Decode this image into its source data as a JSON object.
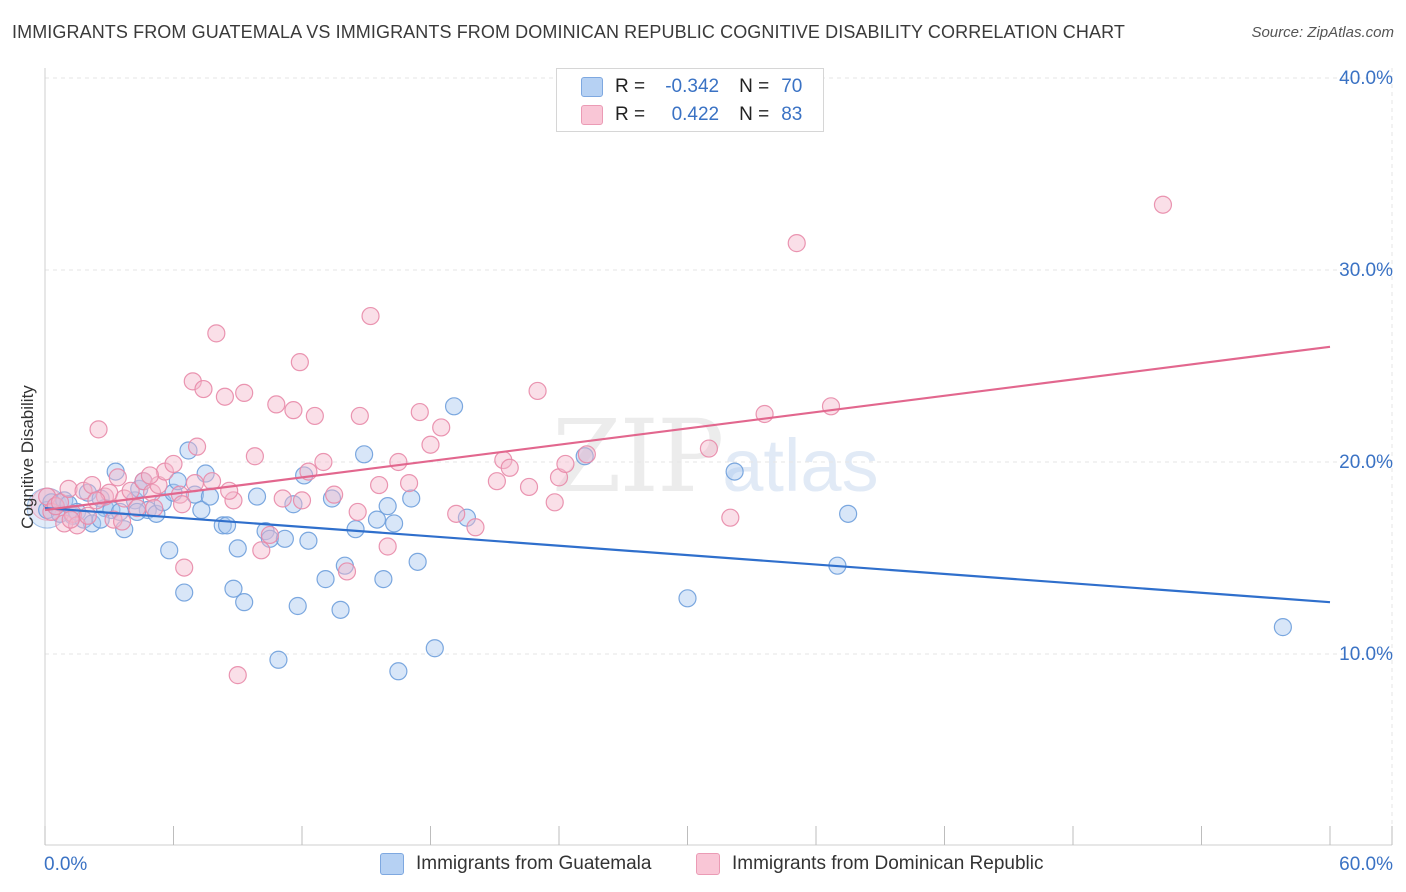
{
  "title": "IMMIGRANTS FROM GUATEMALA VS IMMIGRANTS FROM DOMINICAN REPUBLIC COGNITIVE DISABILITY CORRELATION CHART",
  "source": "Source: ZipAtlas.com",
  "watermark": {
    "part1": "ZIP",
    "part2": "atlas"
  },
  "legend": {
    "rows": [
      {
        "r_label": "R =",
        "r_value": "-0.342",
        "n_label": "N =",
        "n_value": "70"
      },
      {
        "r_label": "R =",
        "r_value": "0.422",
        "n_label": "N =",
        "n_value": "83"
      }
    ]
  },
  "bottom_legend": [
    "Immigrants from Guatemala",
    "Immigrants from Dominican Republic"
  ],
  "colors": {
    "blue_fill": "#a8c8f0",
    "blue_stroke": "#6e9fdc",
    "blue_line": "#2f6fcc",
    "pink_fill": "#f5b8cc",
    "pink_stroke": "#e88aa8",
    "pink_line": "#e2678e",
    "tick_label": "#3a72c4",
    "grid": "#e6e6e6"
  },
  "chart_data": {
    "type": "scatter",
    "title": "IMMIGRANTS FROM GUATEMALA VS IMMIGRANTS FROM DOMINICAN REPUBLIC COGNITIVE DISABILITY CORRELATION CHART",
    "xlabel": "",
    "ylabel": "Cognitive Disability",
    "xlim": [
      0,
      60
    ],
    "ylim": [
      0,
      42
    ],
    "x_tick_labels": [
      "0.0%",
      "60.0%"
    ],
    "y_ticks": [
      10,
      20,
      30,
      40
    ],
    "y_tick_labels": [
      "10.0%",
      "20.0%",
      "30.0%",
      "40.0%"
    ],
    "grid": true,
    "legend_position": "top-center",
    "series": [
      {
        "name": "Immigrants from Guatemala",
        "r": -0.342,
        "n": 70,
        "trend": {
          "x": [
            0,
            60
          ],
          "y": [
            17.6,
            12.7
          ]
        },
        "points": [
          [
            0.1,
            17.5
          ],
          [
            0.3,
            17.9
          ],
          [
            0.5,
            17.7
          ],
          [
            0.7,
            17.3
          ],
          [
            0.9,
            18.0
          ],
          [
            1.1,
            17.8
          ],
          [
            1.3,
            17.2
          ],
          [
            1.5,
            17.4
          ],
          [
            1.8,
            17.0
          ],
          [
            2.0,
            18.4
          ],
          [
            2.2,
            16.8
          ],
          [
            2.6,
            18.1
          ],
          [
            2.8,
            17.6
          ],
          [
            3.1,
            17.5
          ],
          [
            3.3,
            19.5
          ],
          [
            3.5,
            17.4
          ],
          [
            3.7,
            16.5
          ],
          [
            4.2,
            18.0
          ],
          [
            4.4,
            18.6
          ],
          [
            4.6,
            19.0
          ],
          [
            4.8,
            17.5
          ],
          [
            5.2,
            17.3
          ],
          [
            5.5,
            17.9
          ],
          [
            5.8,
            15.4
          ],
          [
            6.0,
            18.4
          ],
          [
            6.2,
            19.0
          ],
          [
            6.5,
            13.2
          ],
          [
            6.7,
            20.6
          ],
          [
            7.0,
            18.3
          ],
          [
            7.3,
            17.5
          ],
          [
            7.5,
            19.4
          ],
          [
            7.7,
            18.2
          ],
          [
            8.3,
            16.7
          ],
          [
            8.5,
            16.7
          ],
          [
            8.8,
            13.4
          ],
          [
            9.0,
            15.5
          ],
          [
            9.3,
            12.7
          ],
          [
            9.9,
            18.2
          ],
          [
            10.3,
            16.4
          ],
          [
            10.5,
            16.0
          ],
          [
            10.9,
            9.7
          ],
          [
            11.2,
            16.0
          ],
          [
            11.6,
            17.8
          ],
          [
            11.8,
            12.5
          ],
          [
            12.1,
            19.3
          ],
          [
            12.3,
            15.9
          ],
          [
            13.1,
            13.9
          ],
          [
            13.4,
            18.1
          ],
          [
            13.8,
            12.3
          ],
          [
            14.0,
            14.6
          ],
          [
            14.5,
            16.5
          ],
          [
            14.9,
            20.4
          ],
          [
            15.5,
            17.0
          ],
          [
            15.8,
            13.9
          ],
          [
            16.0,
            17.7
          ],
          [
            16.3,
            16.8
          ],
          [
            16.5,
            9.1
          ],
          [
            17.1,
            18.1
          ],
          [
            17.4,
            14.8
          ],
          [
            18.2,
            10.3
          ],
          [
            19.1,
            22.9
          ],
          [
            19.7,
            17.1
          ],
          [
            25.2,
            20.3
          ],
          [
            30.0,
            12.9
          ],
          [
            32.2,
            19.5
          ],
          [
            37.0,
            14.6
          ],
          [
            37.5,
            17.3
          ],
          [
            57.8,
            11.4
          ],
          [
            4.3,
            17.4
          ],
          [
            2.6,
            17.0
          ]
        ]
      },
      {
        "name": "Immigrants from Dominican Republic",
        "r": 0.422,
        "n": 83,
        "trend": {
          "x": [
            0,
            60
          ],
          "y": [
            17.5,
            26.0
          ]
        },
        "points": [
          [
            0.1,
            18.2
          ],
          [
            0.3,
            17.4
          ],
          [
            0.5,
            17.7
          ],
          [
            0.7,
            17.9
          ],
          [
            0.9,
            16.8
          ],
          [
            1.1,
            18.6
          ],
          [
            1.3,
            17.3
          ],
          [
            1.5,
            16.7
          ],
          [
            1.8,
            18.5
          ],
          [
            2.0,
            17.2
          ],
          [
            2.2,
            18.8
          ],
          [
            2.5,
            21.7
          ],
          [
            2.8,
            18.2
          ],
          [
            3.0,
            18.4
          ],
          [
            3.2,
            17.0
          ],
          [
            3.4,
            19.2
          ],
          [
            3.7,
            18.1
          ],
          [
            4.0,
            18.5
          ],
          [
            4.3,
            17.6
          ],
          [
            4.6,
            19.0
          ],
          [
            5.0,
            18.4
          ],
          [
            5.3,
            18.8
          ],
          [
            5.6,
            19.5
          ],
          [
            6.0,
            19.9
          ],
          [
            6.3,
            18.3
          ],
          [
            6.5,
            14.5
          ],
          [
            6.9,
            24.2
          ],
          [
            7.1,
            20.8
          ],
          [
            7.4,
            23.8
          ],
          [
            7.8,
            19.0
          ],
          [
            8.0,
            26.7
          ],
          [
            8.4,
            23.4
          ],
          [
            8.8,
            18.0
          ],
          [
            9.0,
            8.9
          ],
          [
            9.3,
            23.6
          ],
          [
            9.8,
            20.3
          ],
          [
            10.1,
            15.4
          ],
          [
            10.5,
            16.2
          ],
          [
            10.8,
            23.0
          ],
          [
            11.1,
            18.1
          ],
          [
            11.6,
            22.7
          ],
          [
            11.9,
            25.2
          ],
          [
            12.3,
            19.5
          ],
          [
            12.6,
            22.4
          ],
          [
            13.0,
            20.0
          ],
          [
            13.5,
            18.3
          ],
          [
            14.1,
            14.3
          ],
          [
            14.7,
            22.4
          ],
          [
            15.2,
            27.6
          ],
          [
            15.6,
            18.8
          ],
          [
            16.0,
            15.6
          ],
          [
            16.5,
            20.0
          ],
          [
            17.0,
            18.9
          ],
          [
            17.5,
            22.6
          ],
          [
            18.0,
            20.9
          ],
          [
            18.5,
            21.8
          ],
          [
            19.2,
            17.3
          ],
          [
            20.1,
            16.6
          ],
          [
            21.1,
            19.0
          ],
          [
            21.4,
            20.1
          ],
          [
            21.7,
            19.7
          ],
          [
            22.6,
            18.7
          ],
          [
            23.0,
            23.7
          ],
          [
            23.8,
            17.9
          ],
          [
            24.0,
            19.2
          ],
          [
            24.3,
            19.9
          ],
          [
            25.3,
            20.4
          ],
          [
            31.0,
            20.7
          ],
          [
            32.0,
            17.1
          ],
          [
            33.6,
            22.5
          ],
          [
            35.1,
            31.4
          ],
          [
            36.7,
            22.9
          ],
          [
            52.2,
            33.4
          ],
          [
            6.4,
            17.8
          ],
          [
            5.1,
            17.6
          ],
          [
            3.6,
            16.9
          ],
          [
            1.2,
            17.0
          ],
          [
            2.4,
            18.0
          ],
          [
            4.9,
            19.3
          ],
          [
            7.0,
            18.9
          ],
          [
            8.6,
            18.5
          ],
          [
            12.0,
            18.0
          ],
          [
            14.6,
            17.4
          ]
        ]
      }
    ]
  }
}
